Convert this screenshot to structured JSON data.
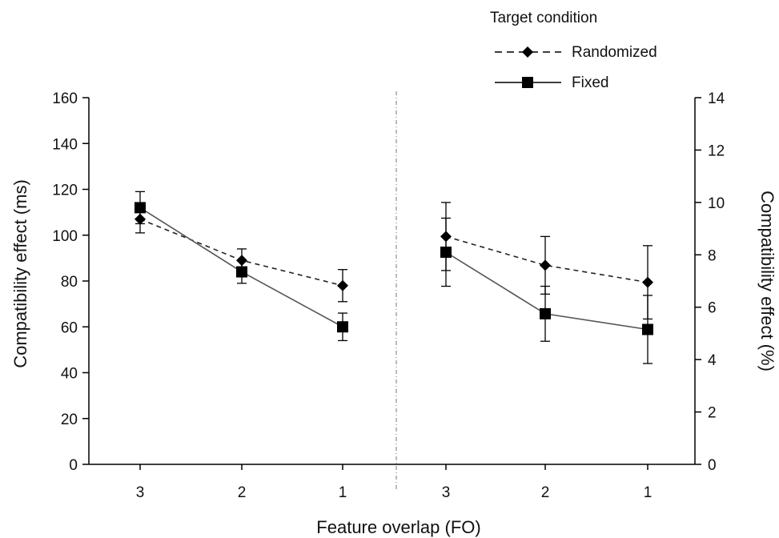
{
  "chart_data": {
    "type": "line",
    "xlabel": "Feature overlap (FO)",
    "legend": {
      "title": "Target condition",
      "placement": "top-right",
      "entries": [
        "Randomized",
        "Fixed"
      ]
    },
    "panels": [
      {
        "categories": [
          "3",
          "2",
          "1"
        ],
        "axis": "left",
        "ylabel": "Compatibility effect (ms)",
        "ylim": [
          0,
          160
        ],
        "yticks": [
          0,
          20,
          40,
          60,
          80,
          100,
          120,
          140,
          160
        ],
        "series": [
          {
            "name": "Randomized",
            "style": "dashed",
            "marker": "diamond",
            "values": [
              107,
              89,
              78
            ],
            "error": [
              6,
              5,
              7
            ]
          },
          {
            "name": "Fixed",
            "style": "solid",
            "marker": "square",
            "values": [
              112,
              84,
              60
            ],
            "error": [
              7,
              5,
              6
            ]
          }
        ]
      },
      {
        "categories": [
          "3",
          "2",
          "1"
        ],
        "axis": "right",
        "ylabel": "Compatibility effect (%)",
        "ylim": [
          0,
          14
        ],
        "yticks": [
          0,
          2,
          4,
          6,
          8,
          10,
          12,
          14
        ],
        "series": [
          {
            "name": "Randomized",
            "style": "dashed",
            "marker": "diamond",
            "values": [
              8.7,
              7.6,
              6.95
            ],
            "error": [
              1.3,
              1.1,
              1.4
            ]
          },
          {
            "name": "Fixed",
            "style": "solid",
            "marker": "square",
            "values": [
              8.1,
              5.75,
              5.15
            ],
            "error": [
              1.3,
              1.05,
              1.3
            ]
          }
        ]
      }
    ]
  }
}
